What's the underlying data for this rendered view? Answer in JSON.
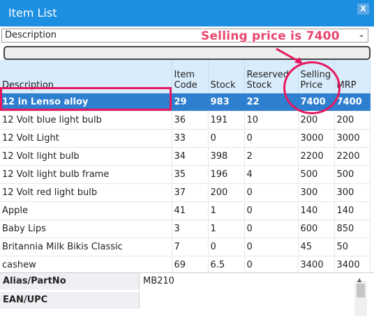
{
  "window": {
    "title": "Item List",
    "close_label": "X"
  },
  "filter": {
    "selected": "Description"
  },
  "annotation": {
    "callout": "Selling price is 7400"
  },
  "table": {
    "headers": [
      "Description",
      "Item Code",
      "Stock",
      "Reserved Stock",
      "Selling Price",
      "MRP"
    ],
    "rows": [
      [
        "12 in Lenso alloy",
        "29",
        "983",
        "22",
        "7400",
        "7400"
      ],
      [
        "12 Volt blue light bulb",
        "36",
        "191",
        "10",
        "200",
        "200"
      ],
      [
        "12 Volt Light",
        "33",
        "0",
        "0",
        "3000",
        "3000"
      ],
      [
        "12 Volt light bulb",
        "34",
        "398",
        "2",
        "2200",
        "2200"
      ],
      [
        "12 Volt light bulb frame",
        "35",
        "196",
        "4",
        "500",
        "500"
      ],
      [
        "12 Volt red light bulb",
        "37",
        "200",
        "0",
        "300",
        "300"
      ],
      [
        "Apple",
        "41",
        "1",
        "0",
        "140",
        "140"
      ],
      [
        "Baby Lips",
        "3",
        "1",
        "0",
        "600",
        "850"
      ],
      [
        "Britannia Milk Bikis Classic",
        "7",
        "0",
        "0",
        "45",
        "50"
      ],
      [
        "cashew",
        "69",
        "6.5",
        "0",
        "3400",
        "3400"
      ]
    ]
  },
  "details": {
    "alias_label": "Alias/PartNo",
    "alias_value": "MB210",
    "ean_label": "EAN/UPC",
    "ean_value": ""
  },
  "colors": {
    "titlebar": "#1d8fe0",
    "selected_row": "#2f7fd0",
    "highlight": "#e8175d"
  }
}
